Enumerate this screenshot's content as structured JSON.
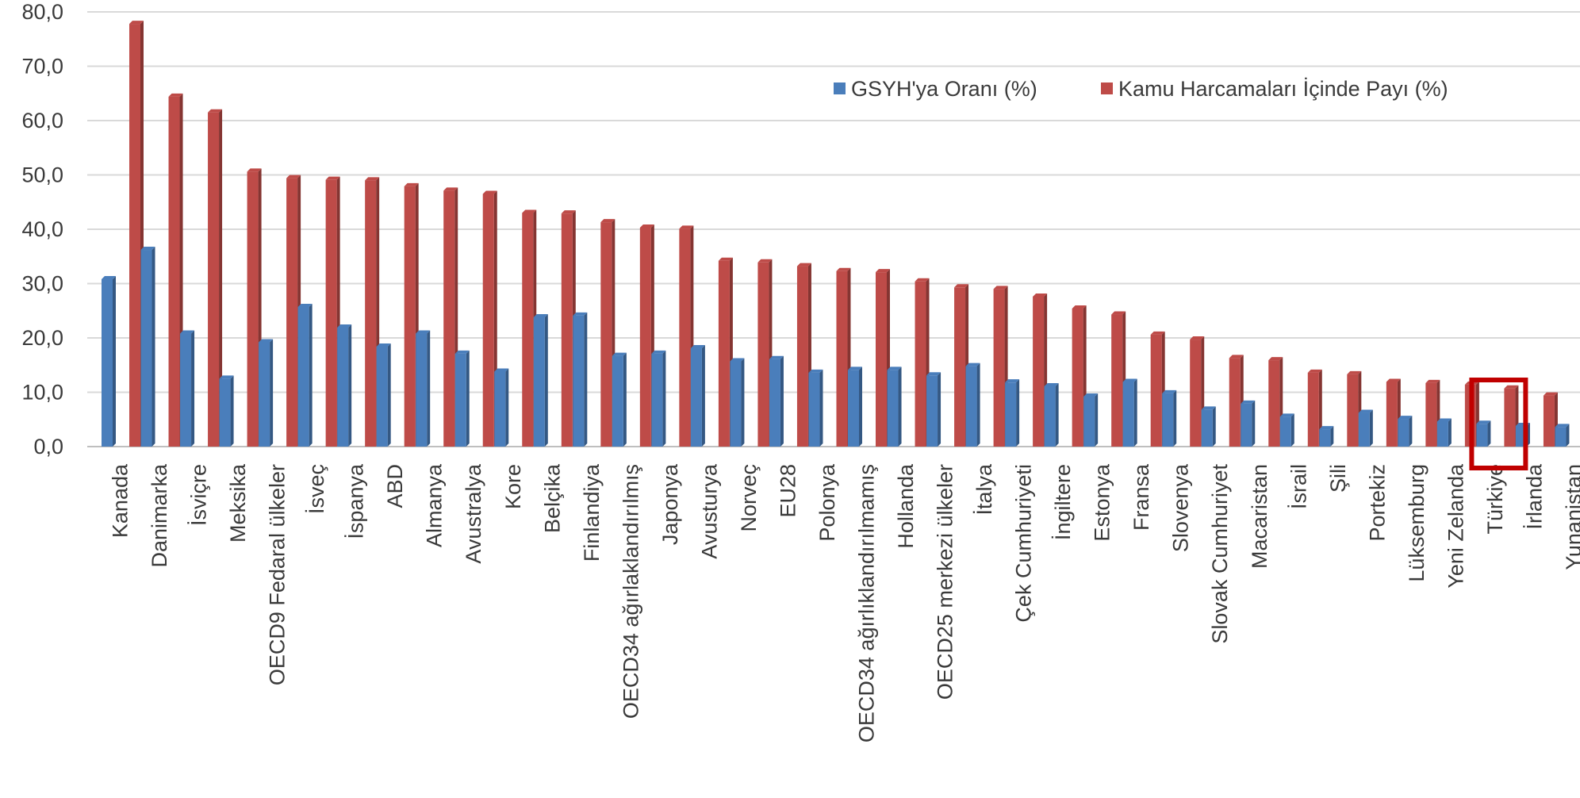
{
  "chart_data": {
    "type": "bar",
    "title": "",
    "xlabel": "",
    "ylabel": "",
    "ylim": [
      0,
      80
    ],
    "yticks": [
      "0,0",
      "10,0",
      "20,0",
      "30,0",
      "40,0",
      "50,0",
      "60,0",
      "70,0",
      "80,0"
    ],
    "grid": true,
    "legend_position": "top-right",
    "categories": [
      "Kanada",
      "Danimarka",
      "İsviçre",
      "Meksika",
      "OECD9 Fedaral ülkeler",
      "İsveç",
      "İspanya",
      "ABD",
      "Almanya",
      "Avustralya",
      "Kore",
      "Belçika",
      "Finlandiya",
      "OECD34 ağırlaklandırılmış",
      "Japonya",
      "Avusturya",
      "Norveç",
      "EU28",
      "Polonya",
      "OECD34 ağırlıklandırılmamış",
      "Hollanda",
      "OECD25 merkezi ülkeler",
      "İtalya",
      "Çek Cumhuriyeti",
      "İngiltere",
      "Estonya",
      "Fransa",
      "Slovenya",
      "Slovak Cumhuriyet",
      "Macaristan",
      "İsrail",
      "Şili",
      "Portekiz",
      "Lüksemburg",
      "Yeni Zelanda",
      "Türkiye",
      "İrlanda",
      "Yunanistan"
    ],
    "series": [
      {
        "name": "GSYH'ya Oranı (%)",
        "color": "#4a7ebb",
        "values": [
          30.8,
          36.2,
          20.8,
          12.5,
          19.2,
          25.7,
          21.9,
          18.4,
          20.8,
          17.1,
          13.8,
          23.8,
          24.1,
          16.7,
          17.1,
          18.1,
          15.7,
          16.1,
          13.6,
          14.1,
          14.1,
          13.1,
          14.8,
          11.8,
          11.1,
          9.2,
          11.9,
          9.8,
          6.8,
          7.9,
          5.5,
          3.2,
          6.2,
          5.1,
          4.6,
          4.2,
          3.8,
          3.6
        ]
      },
      {
        "name": "Kamu Harcamaları İçinde Payı (%)",
        "color": "#be4b48",
        "values": [
          77.8,
          64.4,
          61.5,
          50.6,
          49.4,
          49.1,
          49.0,
          47.9,
          47.1,
          46.5,
          43.0,
          42.9,
          41.3,
          40.3,
          40.1,
          34.2,
          33.9,
          33.2,
          32.3,
          32.1,
          30.4,
          29.3,
          29.0,
          27.6,
          25.4,
          24.3,
          20.6,
          19.7,
          16.3,
          15.9,
          13.6,
          13.3,
          11.9,
          11.7,
          11.4,
          10.7,
          9.4,
          6.8
        ]
      }
    ],
    "highlight": {
      "category": "Türkiye",
      "color": "#c00000"
    },
    "gridline_color": "#d9d9d9"
  }
}
